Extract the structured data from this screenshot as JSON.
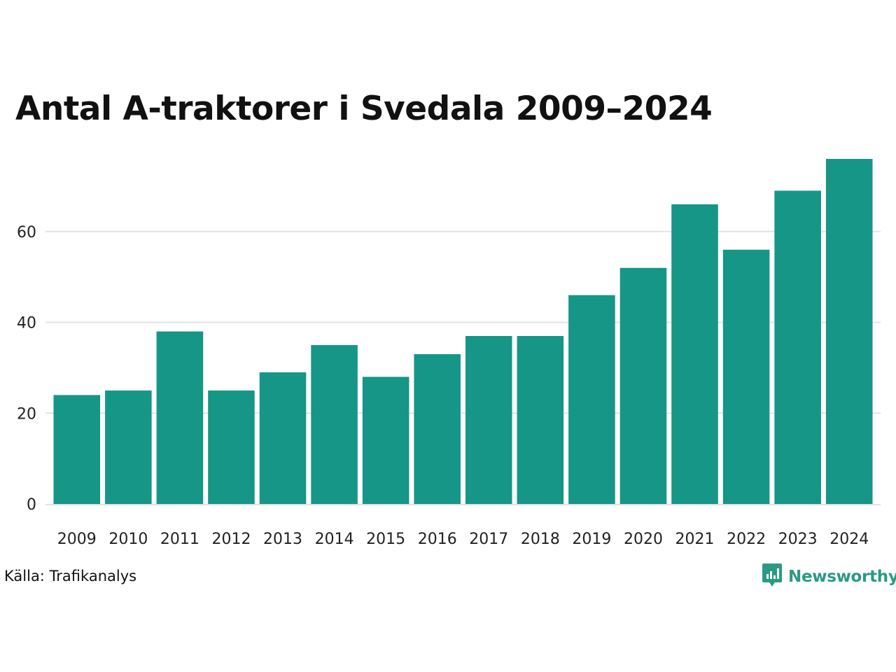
{
  "chart_data": {
    "type": "bar",
    "title": "Antal A-traktorer i Svedala 2009–2024",
    "categories": [
      "2009",
      "2010",
      "2011",
      "2012",
      "2013",
      "2014",
      "2015",
      "2016",
      "2017",
      "2018",
      "2019",
      "2020",
      "2021",
      "2022",
      "2023",
      "2024"
    ],
    "values": [
      24,
      25,
      38,
      25,
      29,
      35,
      28,
      33,
      37,
      37,
      46,
      52,
      66,
      56,
      69,
      76
    ],
    "yticks": [
      0,
      20,
      40,
      60
    ],
    "ylim": [
      0,
      76
    ],
    "grid": true,
    "bar_color": "#169687",
    "grid_color": "#e3e3e3"
  },
  "footer": {
    "source": "Källa: Trafikanalys",
    "brand": "Newsworthy",
    "brand_icon": "newsworthy-logo-icon",
    "brand_color": "#2b9a83"
  }
}
